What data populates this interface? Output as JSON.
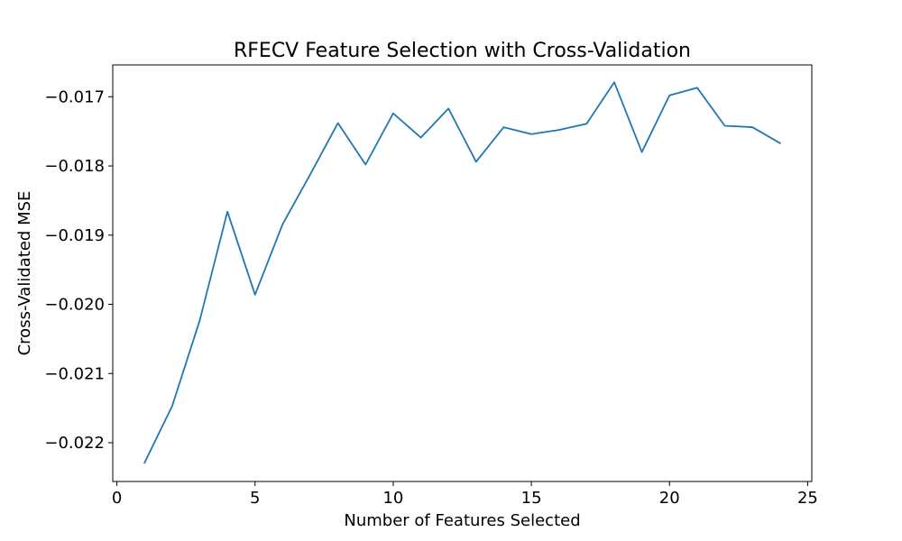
{
  "chart_data": {
    "type": "line",
    "title": "RFECV Feature Selection with Cross-Validation",
    "xlabel": "Number of Features Selected",
    "ylabel": "Cross-Validated MSE",
    "xlim": [
      -0.15,
      25.15
    ],
    "ylim": [
      -0.02256,
      -0.01654
    ],
    "x_ticks": [
      0,
      5,
      10,
      15,
      20,
      25
    ],
    "x_tick_labels": [
      "0",
      "5",
      "10",
      "15",
      "20",
      "25"
    ],
    "y_ticks": [
      -0.022,
      -0.021,
      -0.02,
      -0.019,
      -0.018,
      -0.017
    ],
    "y_tick_labels": [
      "−0.022",
      "−0.021",
      "−0.020",
      "−0.019",
      "−0.018",
      "−0.017"
    ],
    "grid": false,
    "series": [
      {
        "color": "#1f77b4",
        "x": [
          1,
          2,
          3,
          4,
          5,
          6,
          7,
          8,
          9,
          10,
          11,
          12,
          13,
          14,
          15,
          16,
          17,
          18,
          19,
          20,
          21,
          22,
          23,
          24
        ],
        "y": [
          -0.02229,
          -0.02147,
          -0.02023,
          -0.01866,
          -0.01986,
          -0.01884,
          -0.01812,
          -0.01738,
          -0.01798,
          -0.01724,
          -0.01759,
          -0.01717,
          -0.01794,
          -0.01744,
          -0.01754,
          -0.01748,
          -0.01739,
          -0.01679,
          -0.0178,
          -0.01698,
          -0.01687,
          -0.01742,
          -0.01744,
          -0.01767
        ]
      }
    ]
  }
}
